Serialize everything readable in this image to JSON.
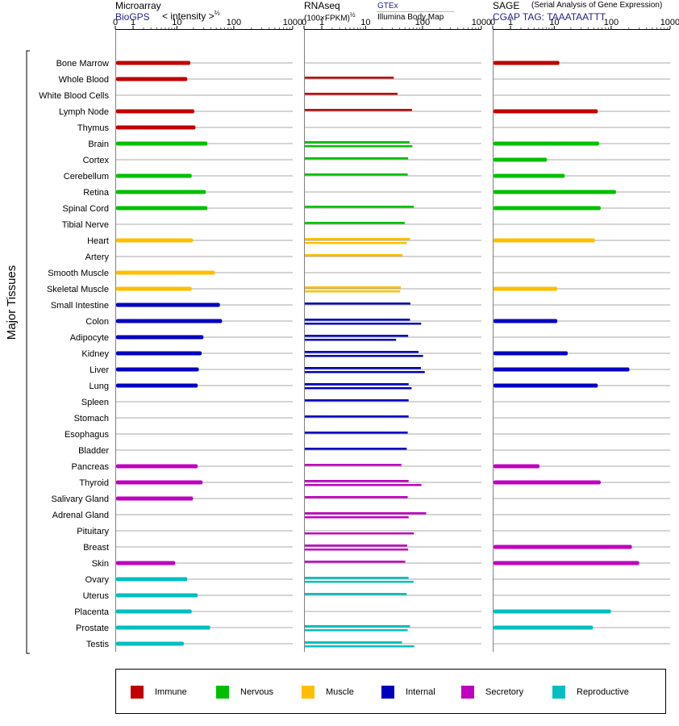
{
  "panels": [
    {
      "title": "Microarray",
      "source": "BioGPS",
      "unit": "< intensity >",
      "unit_exp": "⅔"
    },
    {
      "title": "RNAseq",
      "source_a": "GTEx",
      "source_b": "Illumina Body Map",
      "unit": "(100×FPKM)",
      "unit_exp": "½"
    },
    {
      "title": "SAGE",
      "subtitle": "(Serial Analysis of Gene Expression)",
      "source": "CGAP TAG: TAAATAATTT"
    }
  ],
  "y_axis_label": "Major Tissues",
  "colors": {
    "Immune": "#c00000",
    "Nervous": "#00bf00",
    "Muscle": "#ffbf00",
    "Internal": "#0000bf",
    "Secretory": "#bf00bf",
    "Reproductive": "#00bfbf"
  },
  "legend": [
    "Immune",
    "Nervous",
    "Muscle",
    "Internal",
    "Secretory",
    "Reproductive"
  ],
  "chart_data": [
    {
      "type": "bar",
      "title": "Microarray",
      "xlim": [
        0,
        1000
      ],
      "x_ticks": [
        "0",
        "1",
        "10",
        "100",
        "1000"
      ],
      "categories": [
        "Bone Marrow",
        "Whole Blood",
        "White Blood Cells",
        "Lymph Node",
        "Thymus",
        "Brain",
        "Cortex",
        "Cerebellum",
        "Retina",
        "Spinal Cord",
        "Tibial Nerve",
        "Heart",
        "Artery",
        "Smooth Muscle",
        "Skeletal Muscle",
        "Small Intestine",
        "Colon",
        "Adipocyte",
        "Kidney",
        "Liver",
        "Lung",
        "Spleen",
        "Stomach",
        "Esophagus",
        "Bladder",
        "Pancreas",
        "Thyroid",
        "Salivary Gland",
        "Adrenal Gland",
        "Pituitary",
        "Breast",
        "Skin",
        "Ovary",
        "Uterus",
        "Placenta",
        "Prostate",
        "Testis"
      ],
      "groups": [
        "Immune",
        "Immune",
        "Immune",
        "Immune",
        "Immune",
        "Nervous",
        "Nervous",
        "Nervous",
        "Nervous",
        "Nervous",
        "Nervous",
        "Muscle",
        "Muscle",
        "Muscle",
        "Muscle",
        "Internal",
        "Internal",
        "Internal",
        "Internal",
        "Internal",
        "Internal",
        "Internal",
        "Internal",
        "Internal",
        "Internal",
        "Secretory",
        "Secretory",
        "Secretory",
        "Secretory",
        "Secretory",
        "Secretory",
        "Secretory",
        "Reproductive",
        "Reproductive",
        "Reproductive",
        "Reproductive",
        "Reproductive"
      ],
      "values": [
        17,
        15,
        null,
        20,
        21,
        34,
        null,
        18,
        32,
        34,
        null,
        19,
        null,
        46,
        18,
        56,
        61,
        29,
        27,
        24,
        23,
        null,
        null,
        null,
        null,
        23,
        28,
        19,
        null,
        null,
        null,
        9,
        15,
        23,
        18,
        38,
        13
      ]
    },
    {
      "type": "bar",
      "title": "RNAseq",
      "xlim": [
        0,
        1000
      ],
      "x_ticks": [
        "0",
        "1",
        "10",
        "100",
        "1000"
      ],
      "series": [
        {
          "name": "GTEx",
          "values": [
            null,
            31,
            36,
            64,
            null,
            58,
            55,
            54,
            null,
            69,
            48,
            59,
            44,
            null,
            41,
            60,
            59,
            55,
            83,
            91,
            56,
            56,
            56,
            54,
            52,
            42,
            56,
            54,
            112,
            null,
            53,
            49,
            56,
            52,
            null,
            59,
            43
          ]
        },
        {
          "name": "Illumina Body Map",
          "values": [
            null,
            null,
            null,
            null,
            null,
            65,
            null,
            null,
            null,
            null,
            null,
            52,
            null,
            null,
            40,
            null,
            92,
            34,
            99,
            106,
            63,
            null,
            null,
            null,
            null,
            null,
            93,
            null,
            56,
            69,
            55,
            null,
            68,
            null,
            null,
            54,
            70
          ]
        }
      ]
    },
    {
      "type": "bar",
      "title": "SAGE",
      "xlim": [
        0,
        1000
      ],
      "x_ticks": [
        "0",
        "1",
        "10",
        "100",
        "1000"
      ],
      "values": [
        12,
        null,
        null,
        57,
        null,
        60,
        7,
        15,
        117,
        64,
        null,
        51,
        null,
        null,
        11,
        null,
        11,
        null,
        17,
        198,
        57,
        null,
        null,
        null,
        null,
        5,
        64,
        null,
        null,
        null,
        218,
        290,
        null,
        null,
        96,
        47,
        null
      ]
    }
  ]
}
